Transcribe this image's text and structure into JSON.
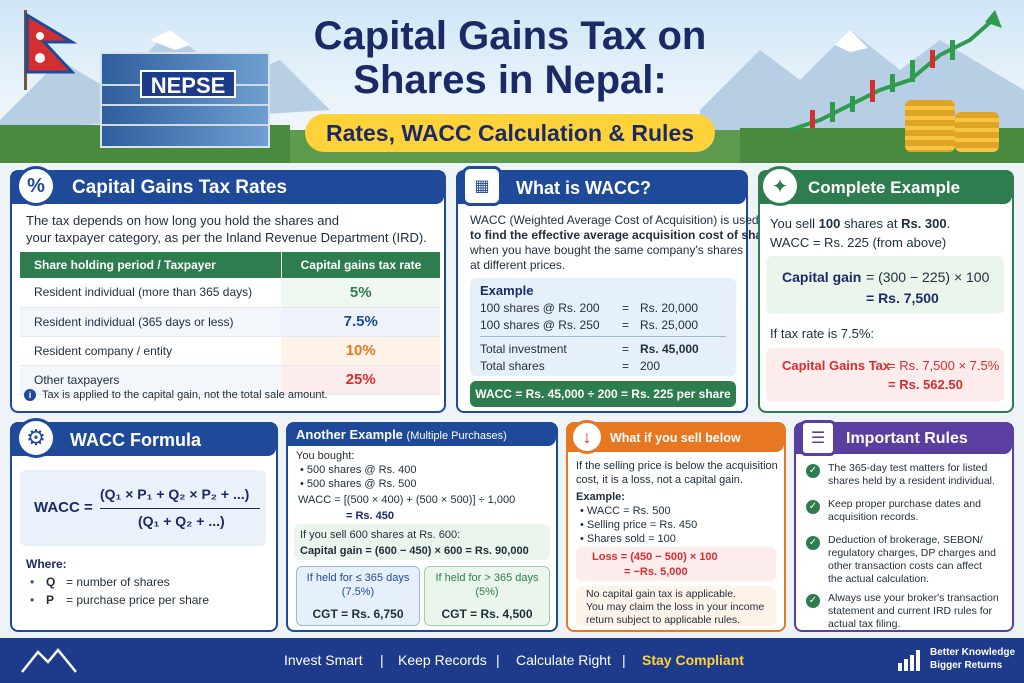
{
  "header": {
    "title_line1": "Capital Gains Tax on",
    "title_line2": "Shares in Nepal:",
    "subtitle": "Rates, WACC Calculation & Rules",
    "building_sign": "NEPSE"
  },
  "rates_card": {
    "title": "Capital Gains Tax Rates",
    "icon": "percent-icon",
    "intro_line1": "The tax depends on how long you hold the shares and",
    "intro_line2": "your taxpayer category, as per the Inland Revenue Department (IRD).",
    "col1": "Share holding period / Taxpayer",
    "col2": "Capital gains tax rate",
    "rows": [
      {
        "label": "Resident individual (more than 365 days)",
        "rate": "5%"
      },
      {
        "label": "Resident individual (365 days or less)",
        "rate": "7.5%"
      },
      {
        "label": "Resident company / entity",
        "rate": "10%"
      },
      {
        "label": "Other taxpayers",
        "rate": "25%"
      }
    ],
    "note": "Tax is applied to the capital gain, not the total sale amount."
  },
  "wacc_card": {
    "title": "What is WACC?",
    "icon": "calculator-icon",
    "line1": "WACC (Weighted Average Cost of Acquisition) is used",
    "line2": "to find the effective average acquisition cost of shares",
    "line3": "when you have bought the same company's shares",
    "line4": "at different prices.",
    "example_label": "Example",
    "ex1_left": "100 shares @ Rs. 200",
    "ex1_right": "Rs. 20,000",
    "ex2_left": "100 shares @ Rs. 250",
    "ex2_right": "Rs. 25,000",
    "total_inv_label": "Total investment",
    "total_inv_value": "Rs. 45,000",
    "total_shares_label": "Total shares",
    "total_shares_value": "200",
    "eq": "=",
    "result": "WACC = Rs. 45,000 ÷ 200 = Rs. 225 per share"
  },
  "complete_card": {
    "title": "Complete Example",
    "icon": "lightbulb-icon",
    "line1_pre": "You sell ",
    "line1_a": "100",
    "line1_mid": " shares at ",
    "line1_b": "Rs. 300",
    "line1_end": ".",
    "line2": "WACC = Rs. 225 (from above)",
    "gain_label": "Capital gain",
    "gain_expr": "= (300 − 225) × 100",
    "gain_value": "= Rs. 7,500",
    "rate_line": "If tax rate is 7.5%:",
    "tax_label": "Capital Gains Tax",
    "tax_expr": "= Rs. 7,500 × 7.5%",
    "tax_value": "= Rs. 562.50"
  },
  "formula_card": {
    "title": "WACC Formula",
    "icon": "gear-icon",
    "lhs": "WACC =",
    "numerator": "(Q₁ × P₁ + Q₂ × P₂ + ...)",
    "denominator": "(Q₁ + Q₂ + ...)",
    "where": "Where:",
    "q_sym": "Q",
    "q_def": "= number of shares",
    "p_sym": "P",
    "p_def": "= purchase price per share"
  },
  "another_card": {
    "title": "Another Example",
    "title_note": "(Multiple Purchases)",
    "bought": "You bought:",
    "b1": "500 shares @ Rs. 400",
    "b2": "500 shares @ Rs. 500",
    "wacc_line": "WACC = [(500 × 400) + (500 × 500)] ÷ 1,000",
    "wacc_result": "= Rs. 450",
    "sell_line": "If you sell 600 shares at Rs. 600:",
    "gain_line": "Capital gain = (600 − 450) × 600 = Rs. 90,000",
    "held_le": "If held for ≤ 365 days",
    "held_le_rate": "(7.5%)",
    "cgt_le": "CGT = Rs. 6,750",
    "held_gt": "If held for > 365 days",
    "held_gt_rate": "(5%)",
    "cgt_gt": "CGT = Rs. 4,500"
  },
  "below_card": {
    "title": "What if you sell below WACC?",
    "icon": "arrow-down-icon",
    "line1": "If the selling price is below the acquisition",
    "line2": "cost, it is a loss, not a capital gain.",
    "example": "Example:",
    "e1": "WACC = Rs. 500",
    "e2": "Selling price = Rs. 450",
    "e3": "Shares sold = 100",
    "loss_expr": "Loss = (450 − 500) × 100",
    "loss_value": "= −Rs. 5,000",
    "n1": "No capital gain tax is applicable.",
    "n2": "You may claim the loss in your income",
    "n3": "return subject to applicable rules."
  },
  "rules_card": {
    "title": "Important Rules",
    "icon": "document-icon",
    "rules": [
      {
        "l1": "The 365-day test matters for listed",
        "l2": "shares held by a resident individual.",
        "l3": "",
        "l4": ""
      },
      {
        "l1": "Keep proper purchase dates and",
        "l2": "acquisition records.",
        "l3": "",
        "l4": ""
      },
      {
        "l1": "Deduction of brokerage, SEBON/",
        "l2": "regulatory charges, DP charges and",
        "l3": "other transaction costs can affect",
        "l4": "the actual calculation."
      },
      {
        "l1": "Always use your broker's transaction",
        "l2": "statement and current IRD rules for",
        "l3": "actual tax filing.",
        "l4": ""
      }
    ]
  },
  "footer": {
    "items": [
      "Invest Smart",
      "Keep Records",
      "Calculate Right",
      "Stay Compliant"
    ],
    "sep": "|",
    "tag1": "Better Knowledge",
    "tag2": "Bigger Returns"
  },
  "colors": {
    "navy": "#1b2a66",
    "blue": "#1f4a9a",
    "green": "#2e7d4f",
    "orange": "#e87722",
    "purple": "#5b3fa0",
    "yellow": "#ffd23a",
    "red": "#d32f2f"
  }
}
